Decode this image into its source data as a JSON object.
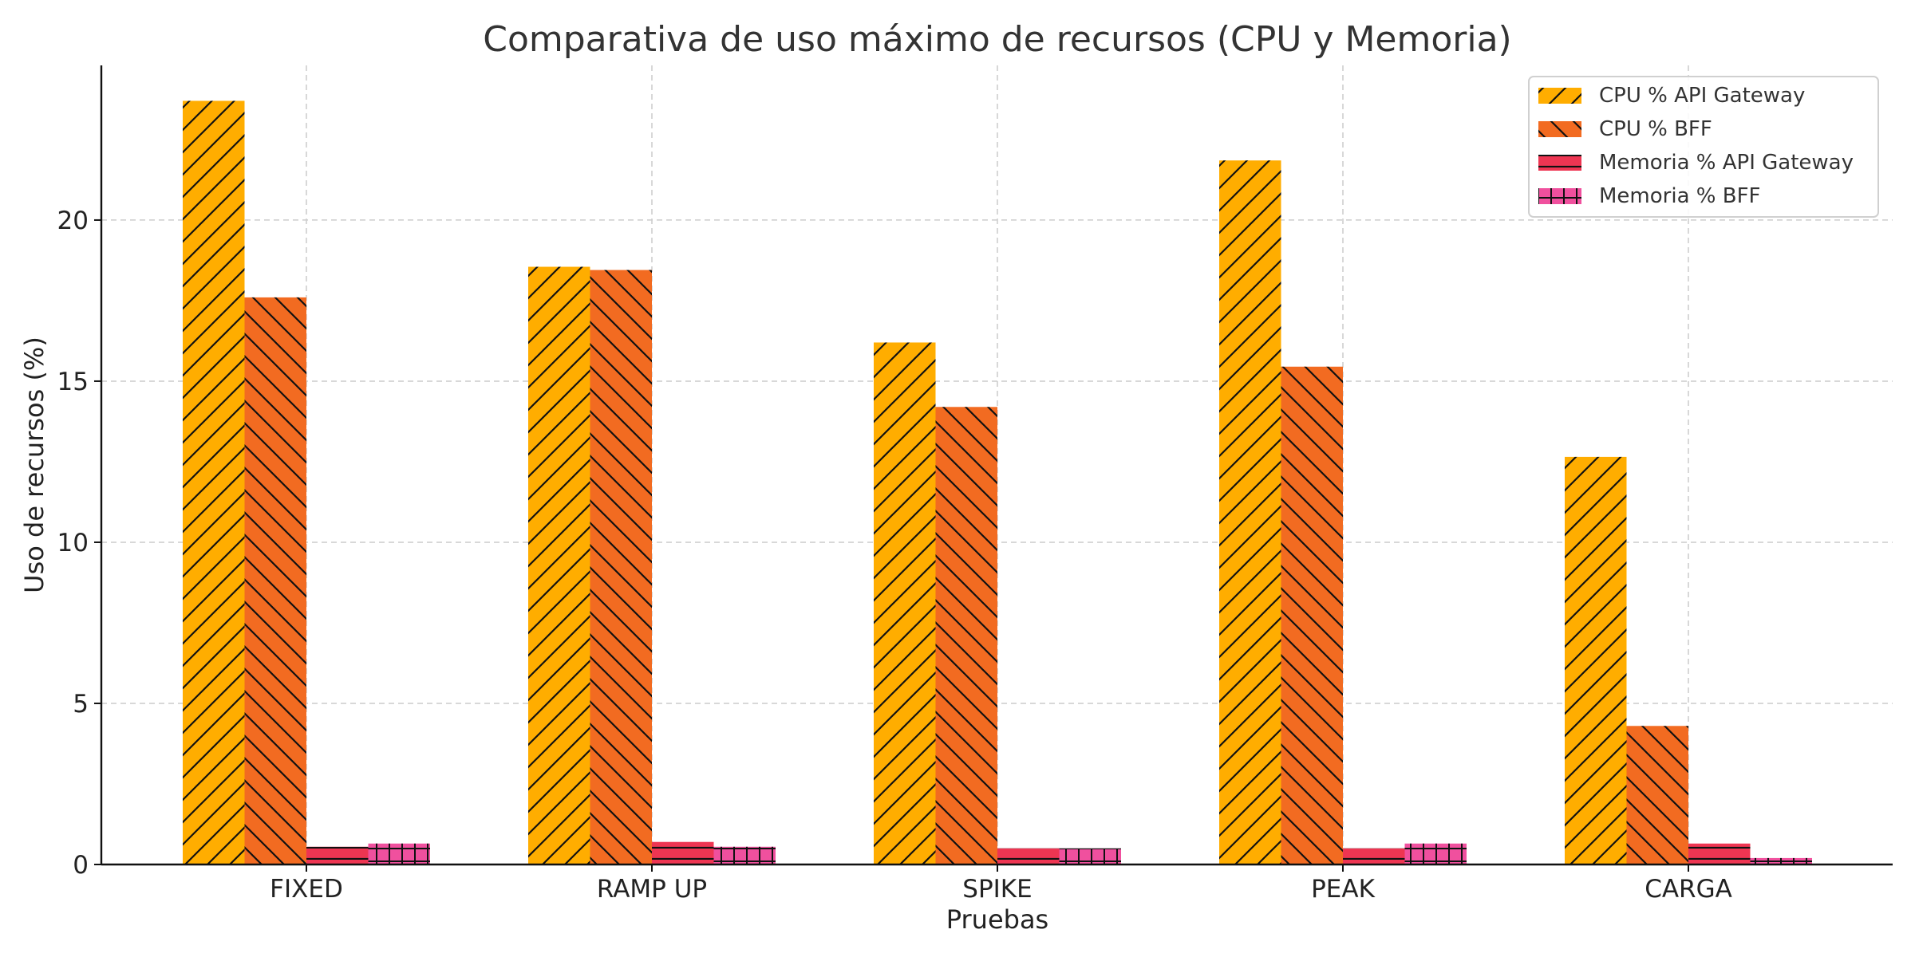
{
  "chart_data": {
    "type": "bar",
    "title": "Comparativa de uso máximo de recursos (CPU y Memoria)",
    "xlabel": "Pruebas",
    "ylabel": "Uso de recursos (%)",
    "categories": [
      "FIXED",
      "RAMP UP",
      "SPIKE",
      "PEAK",
      "CARGA"
    ],
    "ylim": [
      0,
      24.8
    ],
    "yticks": [
      0,
      5,
      10,
      15,
      20
    ],
    "grid": true,
    "legend_position": "top-right",
    "series": [
      {
        "name": "CPU % API Gateway",
        "values": [
          23.7,
          18.55,
          16.2,
          21.85,
          12.65
        ],
        "color": "#ffad00",
        "hatch": "forward-diagonal"
      },
      {
        "name": "CPU % BFF",
        "values": [
          17.6,
          18.45,
          14.2,
          15.45,
          4.3
        ],
        "color": "#f26b21",
        "hatch": "back-diagonal"
      },
      {
        "name": "Memoria % API Gateway",
        "values": [
          0.55,
          0.7,
          0.5,
          0.5,
          0.65
        ],
        "color": "#ee3552",
        "hatch": "horizontal"
      },
      {
        "name": "Memoria % BFF",
        "values": [
          0.65,
          0.55,
          0.5,
          0.65,
          0.2
        ],
        "color": "#f0509e",
        "hatch": "grid"
      }
    ]
  }
}
